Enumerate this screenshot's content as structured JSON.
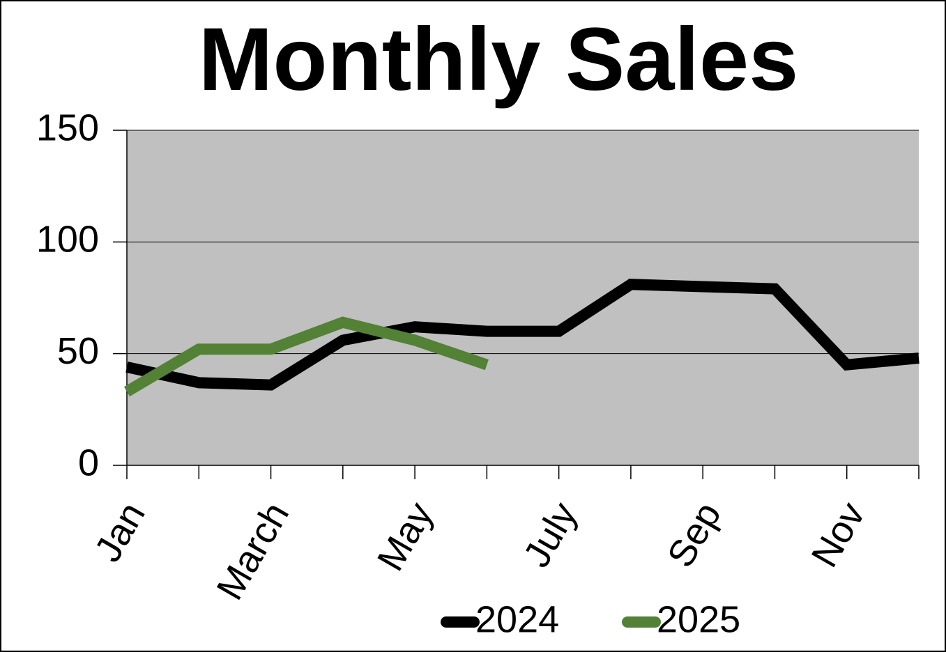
{
  "chart_data": {
    "type": "line",
    "title": "Monthly Sales",
    "categories": [
      "Jan",
      null,
      "March",
      null,
      "May",
      null,
      "July",
      null,
      "Sep",
      null,
      "Nov",
      null
    ],
    "series": [
      {
        "name": "2024",
        "color": "#000000",
        "values": [
          44,
          37,
          36,
          56,
          62,
          60,
          60,
          81,
          80,
          79,
          45,
          48
        ]
      },
      {
        "name": "2025",
        "color": "#538135",
        "values": [
          33,
          52,
          52,
          64,
          56,
          45,
          null,
          null,
          null,
          null,
          null,
          null
        ]
      }
    ],
    "ylim": [
      0,
      150
    ],
    "yticks": [
      0,
      50,
      100,
      150
    ],
    "grid": true,
    "legend": "bottom",
    "plot_background": "#c0c0c0"
  }
}
